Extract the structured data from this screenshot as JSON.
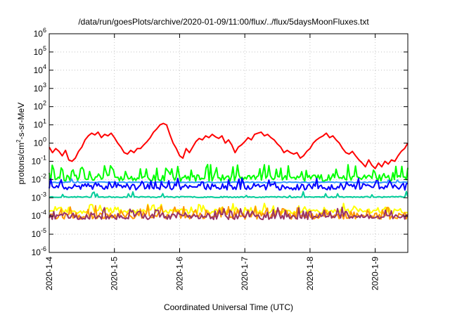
{
  "chart_data": {
    "type": "line",
    "title": "/data/run/goesPlots/archive/2020-01-09/11:00/flux/../flux/5daysMoonFluxes.txt",
    "xlabel": "Coordinated Universal Time (UTC)",
    "ylabel": {
      "prefix": "protons/cm",
      "sup": "2",
      "suffix": "-s-sr-MeV"
    },
    "y_scale": "log",
    "ylim": [
      1e-06,
      1000000.0
    ],
    "y_ticks": [
      {
        "base": "10",
        "exp": "-6"
      },
      {
        "base": "10",
        "exp": "-5"
      },
      {
        "base": "10",
        "exp": "-4"
      },
      {
        "base": "10",
        "exp": "-3"
      },
      {
        "base": "10",
        "exp": "-2"
      },
      {
        "base": "10",
        "exp": "-1"
      },
      {
        "base": "10",
        "exp": "0"
      },
      {
        "base": "10",
        "exp": "1"
      },
      {
        "base": "10",
        "exp": "2"
      },
      {
        "base": "10",
        "exp": "3"
      },
      {
        "base": "10",
        "exp": "4"
      },
      {
        "base": "10",
        "exp": "5"
      },
      {
        "base": "10",
        "exp": "6"
      }
    ],
    "xlim": [
      0,
      5.5
    ],
    "x_ticks": [
      "2020-1-4",
      "2020-1-5",
      "2020-1-6",
      "2020-1-7",
      "2020-1-8",
      "2020-1-9"
    ],
    "grid": true,
    "series": [
      {
        "color": "#00ff00",
        "base": 0.012,
        "noise": 0.35,
        "spike_prob": 0.28,
        "spike": 5.0,
        "seed": 11,
        "width": 2
      },
      {
        "color": "#00cc99",
        "base": 0.0011,
        "noise": 0.06,
        "spike_prob": 0.05,
        "spike": 2.0,
        "seed": 23,
        "width": 2
      },
      {
        "color": "#3399ff",
        "base": 0.007,
        "noise": 0.05,
        "spike_prob": 0.04,
        "spike": 1.6,
        "seed": 37,
        "width": 2
      },
      {
        "color": "#0000ff",
        "base": 0.004,
        "noise": 0.35,
        "spike_prob": 0.22,
        "spike": 2.4,
        "seed": 41,
        "width": 2
      },
      {
        "color": "#ffff00",
        "base": 0.00018,
        "noise": 0.25,
        "spike_prob": 0.25,
        "spike": 2.2,
        "seed": 53,
        "width": 2
      },
      {
        "color": "#ff9900",
        "base": 0.0001,
        "noise": 0.35,
        "spike_prob": 0.3,
        "spike": 3.0,
        "seed": 67,
        "width": 2
      },
      {
        "color": "#993366",
        "base": 9e-05,
        "noise": 0.3,
        "spike_prob": 0.3,
        "spike": 2.6,
        "seed": 79,
        "width": 2
      },
      {
        "color": "#ff0000",
        "width": 2,
        "points": [
          [
            0.0,
            0.6
          ],
          [
            0.05,
            0.3
          ],
          [
            0.1,
            0.5
          ],
          [
            0.15,
            0.35
          ],
          [
            0.2,
            0.2
          ],
          [
            0.25,
            0.4
          ],
          [
            0.3,
            0.12
          ],
          [
            0.35,
            0.1
          ],
          [
            0.4,
            0.15
          ],
          [
            0.45,
            0.35
          ],
          [
            0.5,
            0.6
          ],
          [
            0.55,
            1.5
          ],
          [
            0.6,
            2.5
          ],
          [
            0.65,
            3.5
          ],
          [
            0.7,
            2.8
          ],
          [
            0.75,
            4.0
          ],
          [
            0.8,
            2.0
          ],
          [
            0.85,
            3.0
          ],
          [
            0.9,
            2.5
          ],
          [
            0.95,
            3.5
          ],
          [
            1.0,
            2.0
          ],
          [
            1.05,
            1.0
          ],
          [
            1.1,
            0.6
          ],
          [
            1.15,
            0.3
          ],
          [
            1.2,
            0.25
          ],
          [
            1.25,
            0.4
          ],
          [
            1.3,
            0.3
          ],
          [
            1.35,
            0.5
          ],
          [
            1.4,
            0.5
          ],
          [
            1.45,
            0.8
          ],
          [
            1.5,
            1.2
          ],
          [
            1.55,
            2.0
          ],
          [
            1.6,
            4.0
          ],
          [
            1.65,
            6.0
          ],
          [
            1.7,
            10.0
          ],
          [
            1.75,
            12.0
          ],
          [
            1.8,
            10.0
          ],
          [
            1.85,
            3.0
          ],
          [
            1.9,
            1.0
          ],
          [
            1.95,
            0.5
          ],
          [
            2.0,
            0.2
          ],
          [
            2.05,
            0.15
          ],
          [
            2.1,
            0.5
          ],
          [
            2.15,
            0.3
          ],
          [
            2.2,
            0.6
          ],
          [
            2.25,
            1.2
          ],
          [
            2.3,
            1.8
          ],
          [
            2.35,
            1.5
          ],
          [
            2.4,
            2.5
          ],
          [
            2.45,
            2.0
          ],
          [
            2.5,
            3.0
          ],
          [
            2.55,
            2.2
          ],
          [
            2.6,
            1.8
          ],
          [
            2.65,
            2.5
          ],
          [
            2.7,
            1.0
          ],
          [
            2.75,
            1.5
          ],
          [
            2.8,
            0.8
          ],
          [
            2.85,
            0.3
          ],
          [
            2.9,
            0.6
          ],
          [
            2.95,
            0.8
          ],
          [
            3.0,
            1.2
          ],
          [
            3.05,
            2.0
          ],
          [
            3.1,
            1.5
          ],
          [
            3.15,
            3.0
          ],
          [
            3.2,
            3.5
          ],
          [
            3.25,
            4.0
          ],
          [
            3.3,
            2.5
          ],
          [
            3.35,
            3.0
          ],
          [
            3.4,
            2.0
          ],
          [
            3.45,
            1.5
          ],
          [
            3.5,
            0.9
          ],
          [
            3.55,
            0.6
          ],
          [
            3.6,
            0.3
          ],
          [
            3.65,
            0.4
          ],
          [
            3.7,
            0.3
          ],
          [
            3.75,
            0.25
          ],
          [
            3.8,
            0.3
          ],
          [
            3.85,
            0.15
          ],
          [
            3.9,
            0.2
          ],
          [
            3.95,
            0.35
          ],
          [
            4.0,
            0.5
          ],
          [
            4.05,
            1.0
          ],
          [
            4.1,
            1.5
          ],
          [
            4.15,
            2.0
          ],
          [
            4.2,
            2.5
          ],
          [
            4.25,
            3.5
          ],
          [
            4.3,
            2.0
          ],
          [
            4.35,
            2.5
          ],
          [
            4.4,
            1.5
          ],
          [
            4.45,
            1.0
          ],
          [
            4.5,
            0.5
          ],
          [
            4.55,
            0.3
          ],
          [
            4.6,
            0.25
          ],
          [
            4.65,
            0.35
          ],
          [
            4.7,
            0.2
          ],
          [
            4.75,
            0.12
          ],
          [
            4.8,
            0.08
          ],
          [
            4.85,
            0.05
          ],
          [
            4.9,
            0.12
          ],
          [
            4.95,
            0.06
          ],
          [
            5.0,
            0.04
          ],
          [
            5.05,
            0.08
          ],
          [
            5.1,
            0.05
          ],
          [
            5.15,
            0.1
          ],
          [
            5.2,
            0.07
          ],
          [
            5.25,
            0.12
          ],
          [
            5.3,
            0.1
          ],
          [
            5.35,
            0.2
          ],
          [
            5.4,
            0.35
          ],
          [
            5.45,
            0.5
          ],
          [
            5.5,
            1.0
          ]
        ]
      }
    ]
  }
}
